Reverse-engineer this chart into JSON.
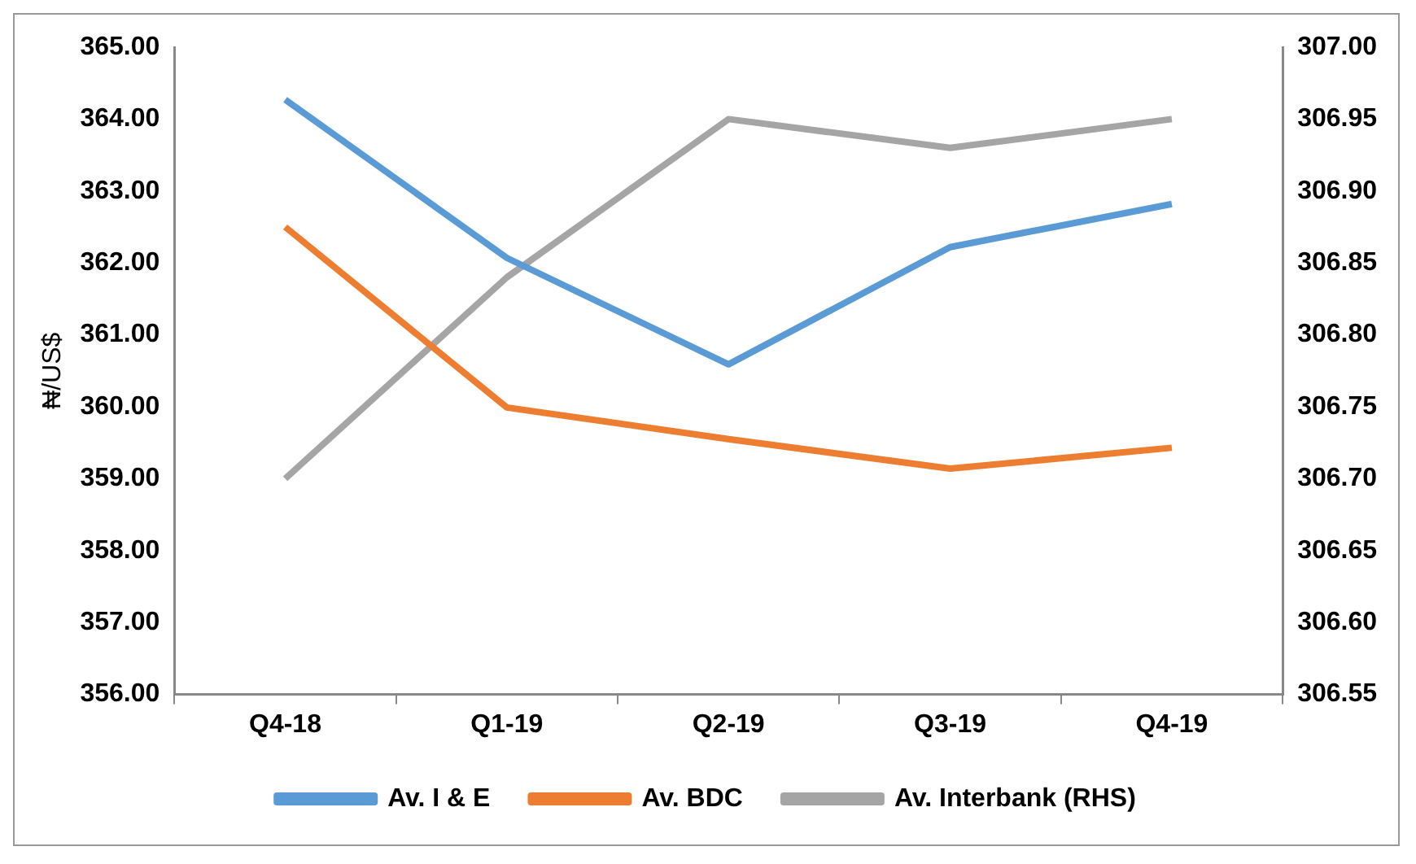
{
  "chart_data": {
    "type": "line",
    "ylabel": "₦/US$",
    "categories": [
      "Q4-18",
      "Q1-19",
      "Q2-19",
      "Q3-19",
      "Q4-19"
    ],
    "series": [
      {
        "name": "Av. I & E",
        "color": "#5b9bd5",
        "values": [
          364.27,
          362.07,
          360.59,
          362.22,
          362.82
        ]
      },
      {
        "name": "Av. BDC",
        "color": "#ed7d31",
        "values": [
          362.5,
          359.99,
          359.55,
          359.14,
          359.43
        ]
      },
      {
        "name": "Av. Interbank (RHS)",
        "color": "#a5a5a5",
        "axis": "y2",
        "values": [
          306.7,
          306.84,
          306.95,
          306.93,
          306.95
        ]
      }
    ],
    "ylim": [
      356,
      365
    ],
    "yticks": [
      {
        "value": 356,
        "label": "356.00"
      },
      {
        "value": 357,
        "label": "357.00"
      },
      {
        "value": 358,
        "label": "358.00"
      },
      {
        "value": 359,
        "label": "359.00"
      },
      {
        "value": 360,
        "label": "360.00"
      },
      {
        "value": 361,
        "label": "361.00"
      },
      {
        "value": 362,
        "label": "362.00"
      },
      {
        "value": 363,
        "label": "363.00"
      },
      {
        "value": 364,
        "label": "364.00"
      },
      {
        "value": 365,
        "label": "365.00"
      }
    ],
    "y2lim": [
      306.55,
      307
    ],
    "y2ticks": [
      {
        "value": 306.55,
        "label": "306.55"
      },
      {
        "value": 306.6,
        "label": "306.60"
      },
      {
        "value": 306.65,
        "label": "306.65"
      },
      {
        "value": 306.7,
        "label": "306.70"
      },
      {
        "value": 306.75,
        "label": "306.75"
      },
      {
        "value": 306.8,
        "label": "306.80"
      },
      {
        "value": 306.85,
        "label": "306.85"
      },
      {
        "value": 306.9,
        "label": "306.90"
      },
      {
        "value": 306.95,
        "label": "306.95"
      },
      {
        "value": 307,
        "label": "307.00"
      }
    ],
    "grid": false,
    "legend": "bottom",
    "marker": "none",
    "line_style": "solid"
  }
}
